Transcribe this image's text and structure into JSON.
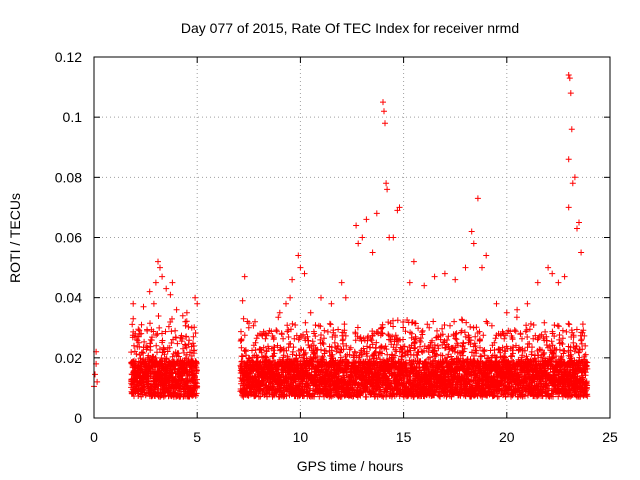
{
  "chart_data": {
    "type": "scatter",
    "title": "Day 077 of 2015, Rate Of TEC Index for receiver nrmd",
    "xlabel": "GPS time / hours",
    "ylabel": "ROTI / TECUs",
    "xlim": [
      0,
      25
    ],
    "ylim": [
      0,
      0.12
    ],
    "xticks": [
      "0",
      "5",
      "10",
      "15",
      "20",
      "25"
    ],
    "yticks": [
      "0",
      "0.02",
      "0.04",
      "0.06",
      "0.08",
      "0.1",
      "0.12"
    ],
    "grid": true,
    "marker": "+",
    "color": "#ff0000",
    "series": [
      {
        "points": [
          [
            0.0,
            0.0105
          ],
          [
            0.05,
            0.0145
          ],
          [
            0.1,
            0.022
          ],
          [
            0.15,
            0.012
          ],
          [
            0.1,
            0.018
          ],
          [
            1.9,
            0.033
          ],
          [
            1.9,
            0.038
          ],
          [
            2.0,
            0.028
          ],
          [
            2.3,
            0.031
          ],
          [
            2.4,
            0.037
          ],
          [
            2.7,
            0.042
          ],
          [
            2.9,
            0.038
          ],
          [
            3.0,
            0.045
          ],
          [
            3.1,
            0.052
          ],
          [
            3.2,
            0.05
          ],
          [
            3.3,
            0.047
          ],
          [
            3.5,
            0.043
          ],
          [
            3.7,
            0.041
          ],
          [
            3.8,
            0.045
          ],
          [
            4.0,
            0.036
          ],
          [
            4.3,
            0.034
          ],
          [
            4.5,
            0.035
          ],
          [
            4.9,
            0.04
          ],
          [
            5.0,
            0.038
          ],
          [
            7.2,
            0.039
          ],
          [
            7.25,
            0.033
          ],
          [
            7.3,
            0.047
          ],
          [
            7.5,
            0.03
          ],
          [
            7.8,
            0.032
          ],
          [
            8.3,
            0.028
          ],
          [
            9.0,
            0.035
          ],
          [
            9.3,
            0.038
          ],
          [
            9.5,
            0.04
          ],
          [
            9.6,
            0.046
          ],
          [
            9.9,
            0.054
          ],
          [
            10.0,
            0.05
          ],
          [
            10.2,
            0.048
          ],
          [
            10.5,
            0.035
          ],
          [
            11.0,
            0.04
          ],
          [
            11.5,
            0.038
          ],
          [
            12.0,
            0.045
          ],
          [
            12.2,
            0.04
          ],
          [
            12.7,
            0.064
          ],
          [
            12.8,
            0.058
          ],
          [
            13.0,
            0.06
          ],
          [
            13.2,
            0.066
          ],
          [
            13.5,
            0.055
          ],
          [
            13.7,
            0.068
          ],
          [
            14.0,
            0.105
          ],
          [
            14.05,
            0.102
          ],
          [
            14.1,
            0.098
          ],
          [
            14.15,
            0.078
          ],
          [
            14.2,
            0.076
          ],
          [
            14.3,
            0.06
          ],
          [
            14.5,
            0.06
          ],
          [
            14.7,
            0.069
          ],
          [
            14.8,
            0.07
          ],
          [
            15.3,
            0.045
          ],
          [
            15.5,
            0.052
          ],
          [
            16.0,
            0.044
          ],
          [
            16.5,
            0.047
          ],
          [
            17.0,
            0.048
          ],
          [
            17.5,
            0.046
          ],
          [
            18.0,
            0.05
          ],
          [
            18.3,
            0.062
          ],
          [
            18.4,
            0.058
          ],
          [
            18.6,
            0.073
          ],
          [
            18.8,
            0.05
          ],
          [
            19.0,
            0.054
          ],
          [
            19.5,
            0.038
          ],
          [
            20.0,
            0.035
          ],
          [
            20.5,
            0.036
          ],
          [
            21.0,
            0.038
          ],
          [
            21.5,
            0.045
          ],
          [
            22.0,
            0.05
          ],
          [
            22.2,
            0.048
          ],
          [
            22.5,
            0.045
          ],
          [
            22.8,
            0.047
          ],
          [
            23.0,
            0.114
          ],
          [
            23.05,
            0.113
          ],
          [
            23.1,
            0.108
          ],
          [
            23.15,
            0.096
          ],
          [
            23.0,
            0.086
          ],
          [
            23.2,
            0.078
          ],
          [
            23.3,
            0.08
          ],
          [
            23.5,
            0.065
          ],
          [
            23.0,
            0.07
          ],
          [
            23.4,
            0.063
          ],
          [
            23.6,
            0.055
          ]
        ]
      }
    ]
  }
}
